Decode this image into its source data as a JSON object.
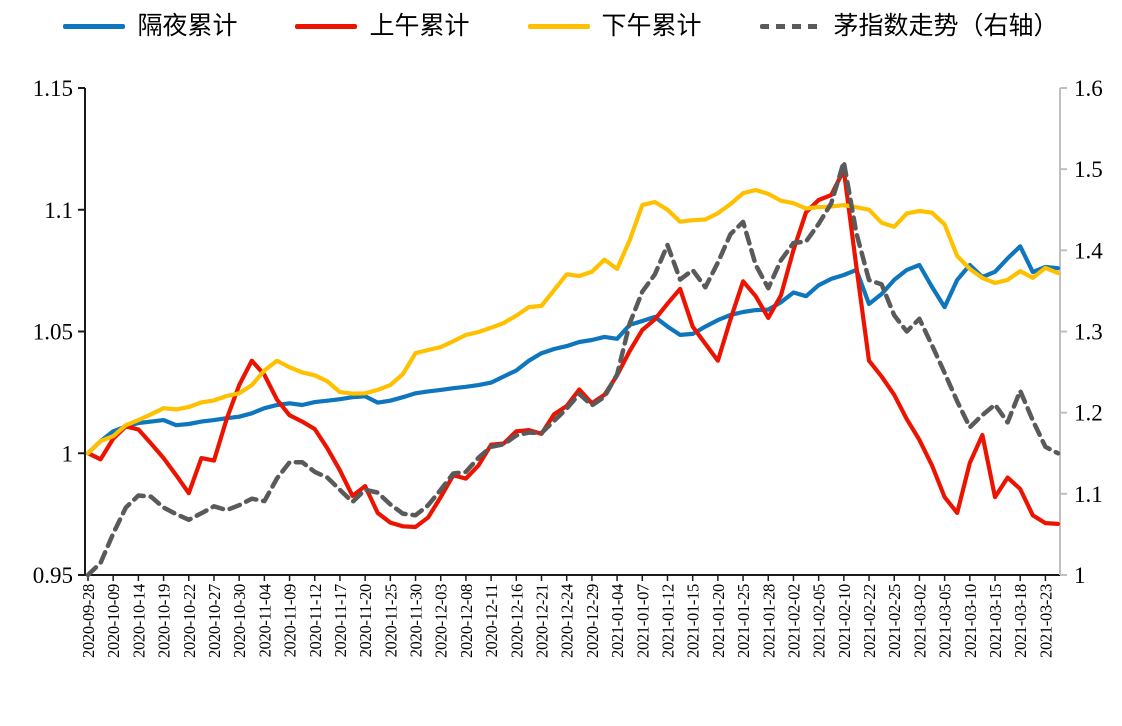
{
  "legend": {
    "items": [
      {
        "label": "隔夜累计",
        "color": "#0e76bd",
        "dashed": false
      },
      {
        "label": "上午累计",
        "color": "#ec1400",
        "dashed": false
      },
      {
        "label": "下午累计",
        "color": "#ffc000",
        "dashed": false
      },
      {
        "label": "茅指数走势（右轴）",
        "color": "#5a5a5a",
        "dashed": true
      }
    ]
  },
  "chart_data": {
    "type": "line",
    "title": "",
    "xlabel": "",
    "ylabel_left": "",
    "ylabel_right": "",
    "grid": false,
    "legend_position": "top",
    "sampling_note": "values sampled at each dated x tick plus one midpoint between ticks and one end point",
    "x_labels": [
      "2020-09-28",
      "2020-10-09",
      "2020-10-14",
      "2020-10-19",
      "2020-10-22",
      "2020-10-27",
      "2020-10-30",
      "2020-11-04",
      "2020-11-09",
      "2020-11-12",
      "2020-11-17",
      "2020-11-20",
      "2020-11-25",
      "2020-11-30",
      "2020-12-03",
      "2020-12-08",
      "2020-12-11",
      "2020-12-16",
      "2020-12-21",
      "2020-12-24",
      "2020-12-29",
      "2021-01-04",
      "2021-01-07",
      "2021-01-12",
      "2021-01-15",
      "2021-01-20",
      "2021-01-25",
      "2021-01-28",
      "2021-02-02",
      "2021-02-05",
      "2021-02-10",
      "2021-02-22",
      "2021-02-25",
      "2021-03-02",
      "2021-03-05",
      "2021-03-10",
      "2021-03-15",
      "2021-03-18",
      "2021-03-23"
    ],
    "left_axis": {
      "min": 0.95,
      "max": 1.15,
      "ticks": [
        "0.95",
        "1",
        "1.05",
        "1.1",
        "1.15"
      ],
      "color": "#000000"
    },
    "right_axis": {
      "min": 1.0,
      "max": 1.6,
      "ticks": [
        "1",
        "1.1",
        "1.2",
        "1.3",
        "1.4",
        "1.5",
        "1.6"
      ],
      "color": "#bfbfbf"
    },
    "series": [
      {
        "name": "隔夜累计",
        "axis": "left",
        "color": "#0e76bd",
        "dashed": false,
        "values": [
          1.0,
          1.005,
          1.009,
          1.011,
          1.0124,
          1.013,
          1.0136,
          1.0115,
          1.012,
          1.013,
          1.0136,
          1.0144,
          1.015,
          1.0164,
          1.0185,
          1.0198,
          1.0205,
          1.0198,
          1.021,
          1.0216,
          1.0222,
          1.023,
          1.0234,
          1.0208,
          1.0216,
          1.023,
          1.0246,
          1.0254,
          1.026,
          1.0267,
          1.0273,
          1.028,
          1.029,
          1.0315,
          1.034,
          1.038,
          1.0411,
          1.0428,
          1.044,
          1.0457,
          1.0465,
          1.0478,
          1.047,
          1.0527,
          1.0543,
          1.056,
          1.052,
          1.0486,
          1.049,
          1.052,
          1.0547,
          1.0568,
          1.058,
          1.0588,
          1.059,
          1.062,
          1.066,
          1.0645,
          1.069,
          1.0716,
          1.0732,
          1.0753,
          1.0613,
          1.0654,
          1.0712,
          1.0753,
          1.0773,
          1.0683,
          1.06,
          1.0712,
          1.0773,
          1.0724,
          1.0745,
          1.08,
          1.085,
          1.0744,
          1.0765,
          1.076
        ]
      },
      {
        "name": "上午累计",
        "axis": "left",
        "color": "#ec1400",
        "dashed": false,
        "values": [
          1.0,
          0.9975,
          1.006,
          1.011,
          1.0098,
          1.004,
          0.998,
          0.991,
          0.9836,
          0.998,
          0.997,
          1.014,
          1.028,
          1.038,
          1.0322,
          1.022,
          1.0156,
          1.013,
          1.0099,
          1.002,
          0.993,
          0.9825,
          0.9865,
          0.9755,
          0.9715,
          0.97,
          0.9697,
          0.9736,
          0.982,
          0.991,
          0.9896,
          0.995,
          1.0035,
          1.004,
          1.009,
          1.0095,
          1.008,
          1.016,
          1.0194,
          1.0262,
          1.0205,
          1.024,
          1.032,
          1.042,
          1.0506,
          1.055,
          1.0614,
          1.0675,
          1.052,
          1.045,
          1.038,
          1.055,
          1.0706,
          1.0645,
          1.0556,
          1.0648,
          1.0835,
          1.099,
          1.104,
          1.106,
          1.1163,
          1.0765,
          1.038,
          1.0315,
          1.024,
          1.014,
          1.0055,
          0.995,
          0.982,
          0.9755,
          0.996,
          1.0075,
          0.982,
          0.99,
          0.9853,
          0.9745,
          0.9713,
          0.971
        ]
      },
      {
        "name": "下午累计",
        "axis": "left",
        "color": "#ffc000",
        "dashed": false,
        "values": [
          1.0,
          1.005,
          1.007,
          1.0115,
          1.0136,
          1.016,
          1.0185,
          1.018,
          1.019,
          1.0209,
          1.0217,
          1.0235,
          1.0246,
          1.028,
          1.034,
          1.038,
          1.0353,
          1.0332,
          1.032,
          1.0295,
          1.0251,
          1.0245,
          1.0246,
          1.026,
          1.028,
          1.0325,
          1.0411,
          1.0424,
          1.0436,
          1.046,
          1.0486,
          1.0498,
          1.0515,
          1.0535,
          1.0565,
          1.06,
          1.0605,
          1.067,
          1.0735,
          1.0728,
          1.0745,
          1.0795,
          1.0757,
          1.0875,
          1.1019,
          1.1032,
          1.1,
          1.0951,
          1.0957,
          1.096,
          1.0986,
          1.1023,
          1.1068,
          1.1081,
          1.1065,
          1.1037,
          1.1027,
          1.1005,
          1.1011,
          1.1013,
          1.1019,
          1.101,
          1.1,
          1.0947,
          1.093,
          1.0985,
          1.0995,
          1.0988,
          1.094,
          1.081,
          1.0757,
          1.072,
          1.0699,
          1.0712,
          1.0748,
          1.072,
          1.0761,
          1.074
        ]
      },
      {
        "name": "茅指数走势（右轴）",
        "axis": "right",
        "color": "#5a5a5a",
        "dashed": true,
        "values": [
          1.0,
          1.015,
          1.051,
          1.083,
          1.098,
          1.0965,
          1.083,
          1.075,
          1.068,
          1.076,
          1.0846,
          1.08,
          1.086,
          1.094,
          1.091,
          1.119,
          1.139,
          1.139,
          1.127,
          1.12,
          1.105,
          1.09,
          1.105,
          1.1015,
          1.087,
          1.0755,
          1.0735,
          1.086,
          1.105,
          1.125,
          1.127,
          1.1445,
          1.158,
          1.161,
          1.172,
          1.1755,
          1.175,
          1.19,
          1.205,
          1.223,
          1.209,
          1.2195,
          1.247,
          1.31,
          1.349,
          1.3705,
          1.4066,
          1.364,
          1.3757,
          1.3545,
          1.385,
          1.42,
          1.435,
          1.382,
          1.3534,
          1.3877,
          1.409,
          1.411,
          1.4324,
          1.4578,
          1.509,
          1.421,
          1.3634,
          1.358,
          1.32,
          1.3,
          1.3157,
          1.283,
          1.249,
          1.214,
          1.182,
          1.197,
          1.21,
          1.188,
          1.227,
          1.1905,
          1.158,
          1.15
        ]
      }
    ]
  }
}
